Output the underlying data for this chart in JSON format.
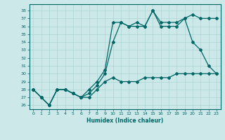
{
  "xlabel": "Humidex (Indice chaleur)",
  "bg_color": "#cce8e8",
  "line_color": "#006666",
  "grid_color": "#aad4d4",
  "ylim": [
    25.5,
    38.8
  ],
  "xlim": [
    -0.5,
    23.5
  ],
  "yticks": [
    26,
    27,
    28,
    29,
    30,
    31,
    32,
    33,
    34,
    35,
    36,
    37,
    38
  ],
  "xticks": [
    0,
    1,
    2,
    3,
    4,
    5,
    6,
    7,
    8,
    9,
    10,
    11,
    12,
    13,
    14,
    15,
    16,
    17,
    18,
    19,
    20,
    21,
    22,
    23
  ],
  "line1_x": [
    0,
    1,
    2,
    3,
    4,
    5,
    6,
    7,
    8,
    9,
    10,
    11,
    12,
    13,
    14,
    15,
    16,
    17,
    18,
    19,
    20,
    21,
    22,
    23
  ],
  "line1_y": [
    28,
    27,
    26,
    28,
    28,
    27.5,
    27,
    27,
    28,
    29,
    29.5,
    29,
    29,
    29,
    29.5,
    29.5,
    29.5,
    29.5,
    30,
    30,
    30,
    30,
    30,
    30
  ],
  "line2_x": [
    0,
    1,
    2,
    3,
    4,
    5,
    6,
    7,
    8,
    9,
    10,
    11,
    12,
    13,
    14,
    15,
    16,
    17,
    18,
    19,
    20,
    21,
    22,
    23
  ],
  "line2_y": [
    28,
    27,
    26,
    28,
    28,
    27.5,
    27,
    27.5,
    28.5,
    30,
    34,
    36.5,
    36,
    36,
    36,
    38,
    36,
    36,
    36,
    37,
    34,
    33,
    31,
    30
  ],
  "line3_x": [
    0,
    1,
    2,
    3,
    4,
    5,
    6,
    7,
    8,
    9,
    10,
    11,
    12,
    13,
    14,
    15,
    16,
    17,
    18,
    19,
    20,
    21,
    22,
    23
  ],
  "line3_y": [
    28,
    27,
    26,
    28,
    28,
    27.5,
    27,
    28,
    29,
    30.5,
    36.5,
    36.5,
    36,
    36.5,
    36,
    38,
    36.5,
    36.5,
    36.5,
    37,
    37.5,
    37,
    37,
    37
  ]
}
